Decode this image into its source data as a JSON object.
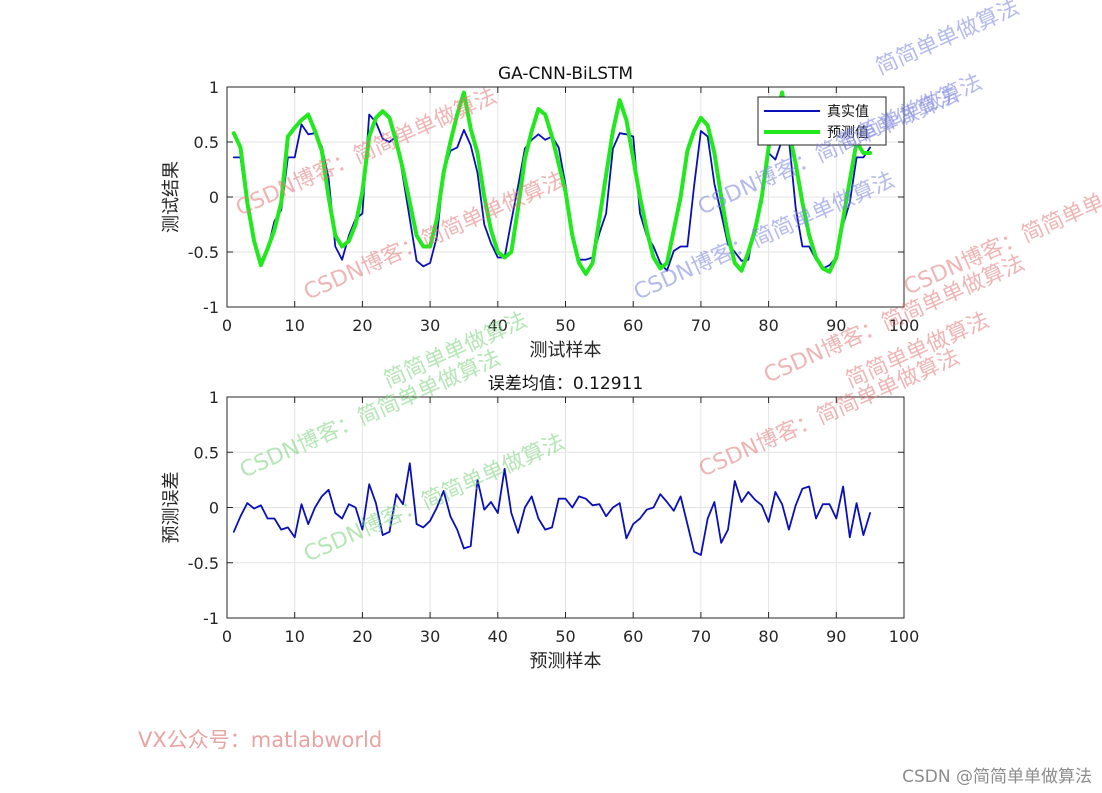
{
  "chart_data": [
    {
      "type": "line",
      "title": "GA-CNN-BiLSTM",
      "xlabel": "测试样本",
      "ylabel": "测试结果",
      "xlim": [
        0,
        100
      ],
      "ylim": [
        -1,
        1
      ],
      "xticks": [
        "0",
        "10",
        "20",
        "30",
        "40",
        "50",
        "60",
        "70",
        "80",
        "90",
        "100"
      ],
      "yticks": [
        "-1",
        "-0.5",
        "0",
        "0.5",
        "1"
      ],
      "grid": true,
      "legend_position": "top-right",
      "series": [
        {
          "name": "真实值",
          "color": "#0a10b8",
          "x": [
            1,
            2,
            3,
            4,
            5,
            6,
            7,
            8,
            9,
            10,
            11,
            12,
            13,
            14,
            15,
            16,
            17,
            18,
            19,
            20,
            21,
            22,
            23,
            24,
            25,
            26,
            27,
            28,
            29,
            30,
            31,
            32,
            33,
            34,
            35,
            36,
            37,
            38,
            39,
            40,
            41,
            42,
            43,
            44,
            45,
            46,
            47,
            48,
            49,
            50,
            51,
            52,
            53,
            54,
            55,
            56,
            57,
            58,
            59,
            60,
            61,
            62,
            63,
            64,
            65,
            66,
            67,
            68,
            69,
            70,
            71,
            72,
            73,
            74,
            75,
            76,
            77,
            78,
            79,
            80,
            81,
            82,
            83,
            84,
            85,
            86,
            87,
            88,
            89,
            90,
            91,
            92,
            93,
            94,
            95
          ],
          "y": [
            0.36,
            0.36,
            -0.1,
            -0.42,
            -0.58,
            -0.48,
            -0.22,
            -0.12,
            0.36,
            0.36,
            0.66,
            0.57,
            0.58,
            0.46,
            0.17,
            -0.45,
            -0.57,
            -0.35,
            -0.2,
            -0.15,
            0.75,
            0.68,
            0.53,
            0.5,
            0.55,
            0.18,
            -0.2,
            -0.58,
            -0.63,
            -0.6,
            -0.36,
            0.23,
            0.42,
            0.45,
            0.61,
            0.47,
            0.22,
            -0.25,
            -0.42,
            -0.55,
            -0.55,
            -0.22,
            0.1,
            0.44,
            0.52,
            0.57,
            0.52,
            0.55,
            0.45,
            0.11,
            -0.34,
            -0.57,
            -0.57,
            -0.55,
            -0.33,
            -0.15,
            0.44,
            0.58,
            0.57,
            0.55,
            -0.15,
            -0.35,
            -0.45,
            -0.6,
            -0.67,
            -0.49,
            -0.45,
            -0.45,
            0.1,
            0.6,
            0.55,
            0.12,
            -0.15,
            -0.43,
            -0.5,
            -0.58,
            -0.57,
            -0.25,
            -0.05,
            0.4,
            0.34,
            0.52,
            0.53,
            -0.1,
            -0.45,
            -0.45,
            -0.57,
            -0.65,
            -0.62,
            -0.55,
            -0.25,
            -0.05,
            0.36,
            0.36,
            0.45
          ]
        },
        {
          "name": "预测值",
          "color": "#22e81e",
          "x": [
            1,
            2,
            3,
            4,
            5,
            6,
            7,
            8,
            9,
            10,
            11,
            12,
            13,
            14,
            15,
            16,
            17,
            18,
            19,
            20,
            21,
            22,
            23,
            24,
            25,
            26,
            27,
            28,
            29,
            30,
            31,
            32,
            33,
            34,
            35,
            36,
            37,
            38,
            39,
            40,
            41,
            42,
            43,
            44,
            45,
            46,
            47,
            48,
            49,
            50,
            51,
            52,
            53,
            54,
            55,
            56,
            57,
            58,
            59,
            60,
            61,
            62,
            63,
            64,
            65,
            66,
            67,
            68,
            69,
            70,
            71,
            72,
            73,
            74,
            75,
            76,
            77,
            78,
            79,
            80,
            81,
            82,
            83,
            84,
            85,
            86,
            87,
            88,
            89,
            90,
            91,
            92,
            93,
            94,
            95
          ],
          "y": [
            0.58,
            0.45,
            -0.05,
            -0.4,
            -0.62,
            -0.47,
            -0.3,
            -0.05,
            0.55,
            0.63,
            0.7,
            0.75,
            0.6,
            0.42,
            0.0,
            -0.35,
            -0.45,
            -0.4,
            -0.25,
            0.05,
            0.55,
            0.72,
            0.78,
            0.72,
            0.5,
            0.25,
            -0.05,
            -0.35,
            -0.45,
            -0.45,
            -0.2,
            0.22,
            0.5,
            0.75,
            0.95,
            0.62,
            0.4,
            0.0,
            -0.3,
            -0.5,
            -0.55,
            -0.5,
            -0.1,
            0.35,
            0.6,
            0.8,
            0.75,
            0.55,
            0.3,
            0.05,
            -0.35,
            -0.6,
            -0.7,
            -0.6,
            -0.2,
            0.2,
            0.6,
            0.88,
            0.7,
            0.35,
            0.0,
            -0.3,
            -0.55,
            -0.65,
            -0.6,
            -0.3,
            0.0,
            0.42,
            0.6,
            0.72,
            0.65,
            0.4,
            0.0,
            -0.35,
            -0.6,
            -0.67,
            -0.5,
            -0.3,
            0.0,
            0.45,
            0.7,
            0.95,
            0.6,
            0.3,
            -0.05,
            -0.35,
            -0.55,
            -0.65,
            -0.68,
            -0.55,
            -0.2,
            0.15,
            0.5,
            0.4,
            0.4
          ]
        }
      ]
    },
    {
      "type": "line",
      "title": "误差均值：0.12911",
      "xlabel": "预测样本",
      "ylabel": "预测误差",
      "xlim": [
        0,
        100
      ],
      "ylim": [
        -1,
        1
      ],
      "xticks": [
        "0",
        "10",
        "20",
        "30",
        "40",
        "50",
        "60",
        "70",
        "80",
        "90",
        "100"
      ],
      "yticks": [
        "-1",
        "-0.5",
        "0",
        "0.5",
        "1"
      ],
      "grid": true,
      "series": [
        {
          "color": "#0a10b8",
          "x": [
            1,
            2,
            3,
            4,
            5,
            6,
            7,
            8,
            9,
            10,
            11,
            12,
            13,
            14,
            15,
            16,
            17,
            18,
            19,
            20,
            21,
            22,
            23,
            24,
            25,
            26,
            27,
            28,
            29,
            30,
            31,
            32,
            33,
            34,
            35,
            36,
            37,
            38,
            39,
            40,
            41,
            42,
            43,
            44,
            45,
            46,
            47,
            48,
            49,
            50,
            51,
            52,
            53,
            54,
            55,
            56,
            57,
            58,
            59,
            60,
            61,
            62,
            63,
            64,
            65,
            66,
            67,
            68,
            69,
            70,
            71,
            72,
            73,
            74,
            75,
            76,
            77,
            78,
            79,
            80,
            81,
            82,
            83,
            84,
            85,
            86,
            87,
            88,
            89,
            90,
            91,
            92,
            93,
            94,
            95
          ],
          "y": [
            -0.22,
            -0.08,
            0.04,
            -0.01,
            0.02,
            -0.1,
            -0.1,
            -0.2,
            -0.18,
            -0.27,
            0.03,
            -0.15,
            0.0,
            0.1,
            0.16,
            -0.05,
            -0.1,
            0.03,
            0.0,
            -0.2,
            0.21,
            0.04,
            -0.25,
            -0.22,
            0.12,
            0.03,
            0.4,
            -0.15,
            -0.18,
            -0.12,
            0.0,
            0.15,
            -0.08,
            -0.2,
            -0.37,
            -0.35,
            0.25,
            -0.02,
            0.05,
            -0.05,
            0.35,
            -0.05,
            -0.23,
            0.0,
            0.1,
            -0.1,
            -0.2,
            -0.18,
            0.08,
            0.08,
            0.0,
            0.1,
            0.08,
            0.02,
            0.03,
            -0.08,
            0.0,
            0.04,
            -0.28,
            -0.15,
            -0.1,
            -0.02,
            0.0,
            0.12,
            0.05,
            -0.03,
            0.1,
            -0.15,
            -0.4,
            -0.43,
            -0.1,
            0.05,
            -0.32,
            -0.2,
            0.24,
            0.05,
            0.14,
            0.07,
            0.02,
            -0.13,
            0.14,
            0.03,
            -0.2,
            0.02,
            0.17,
            0.19,
            -0.1,
            0.03,
            0.03,
            -0.1,
            0.19,
            -0.27,
            0.04,
            -0.25,
            -0.05
          ]
        }
      ]
    }
  ],
  "watermarks": [
    "CSDN博客：简简单单做算法",
    "CSDN博客：简简单单做算法",
    "简简单单做算法",
    "CSDN博客：简简单单做算法",
    "CSDN博客：简简单单做算法",
    "CSDN博客：简简单单做算法",
    "简简单单做算法",
    "CSDN博客：简简单单做算法",
    "简简单单做算法",
    "CSDN博客：简简单单做算法",
    "CSDN博客：简简单单做算法",
    "CSDN博客：简简单单做算法",
    "简简单单做算法"
  ],
  "footer": {
    "credit": "VX公众号：matlabworld",
    "csdn_mark": "CSDN @简简单单做算法"
  }
}
